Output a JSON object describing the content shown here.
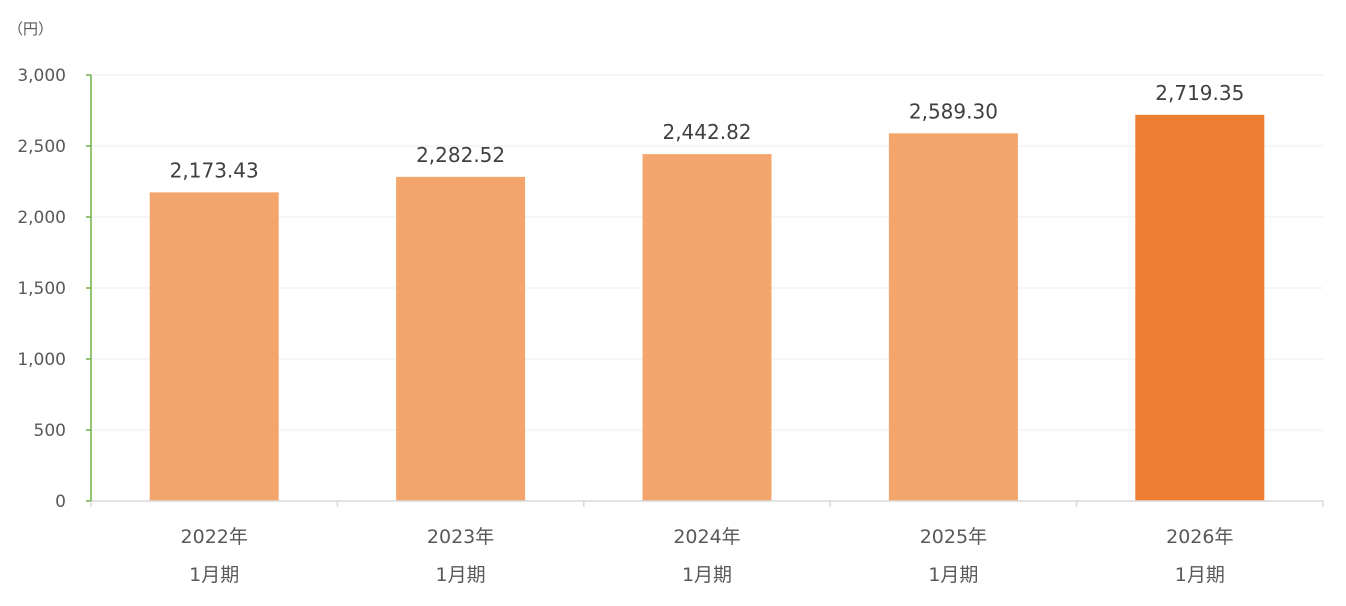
{
  "chart_data": {
    "type": "bar",
    "unit_label": "（円）",
    "categories": [
      [
        "2022年",
        "1月期"
      ],
      [
        "2023年",
        "1月期"
      ],
      [
        "2024年",
        "1月期"
      ],
      [
        "2025年",
        "1月期"
      ],
      [
        "2026年",
        "1月期"
      ]
    ],
    "values": [
      2173.43,
      2282.52,
      2442.82,
      2589.3,
      2719.35
    ],
    "value_labels": [
      "2,173.43",
      "2,282.52",
      "2,442.82",
      "2,589.30",
      "2,719.35"
    ],
    "ylim": [
      0,
      3000
    ],
    "yticks": [
      0,
      500,
      1000,
      1500,
      2000,
      2500,
      3000
    ],
    "ytick_labels": [
      "0",
      "500",
      "1,000",
      "1,500",
      "2,000",
      "2,500",
      "3,000"
    ],
    "grid": true,
    "colors": {
      "bar": "#F4A56C",
      "highlight_bar": "#ED7D31",
      "y_axis": "#70AD47",
      "x_axis": "#D9D9D9",
      "grid": "#EDEDED"
    },
    "highlight_index": 4
  }
}
